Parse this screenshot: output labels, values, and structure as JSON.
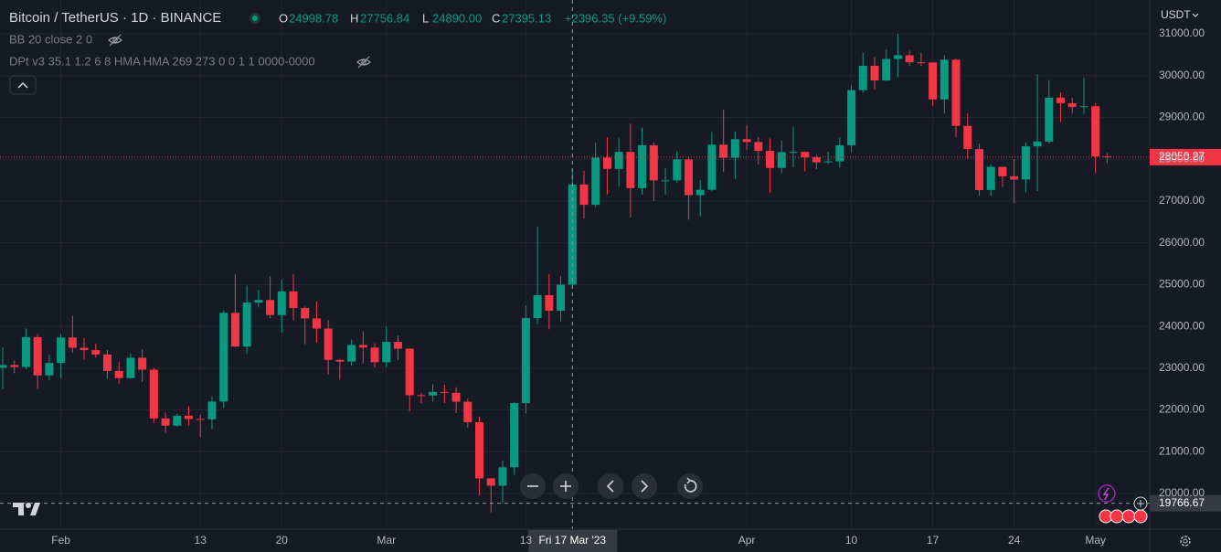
{
  "chart_data": {
    "type": "candlestick",
    "title": "Bitcoin / TetherUS · 1D · BINANCE",
    "ohlc_legend": [
      {
        "key": "O",
        "value": "24998.78"
      },
      {
        "key": "H",
        "value": "27756.84"
      },
      {
        "key": "L",
        "value": "24890.00"
      },
      {
        "key": "C",
        "value": "27395.13"
      }
    ],
    "change": "+2396.35 (+9.59%)",
    "indicators": [
      "BB 20 close 2 0",
      "DPt v3 35.1 1.2 6 8 HMA HMA 269 273 0 0 1 1 0000-0000"
    ],
    "currency": "USDT",
    "crosshair": {
      "date_label": "Fri 17 Mar '23",
      "price": 19766.67,
      "price_label": "19766.67"
    },
    "last_price": 28050.27,
    "up_color": "#089981",
    "down_color": "#f23645",
    "grid": true,
    "ylim": [
      19169,
      31809
    ],
    "yticks": [
      {
        "value": 20000,
        "label": "20000.00"
      },
      {
        "value": 21000,
        "label": "21000.00"
      },
      {
        "value": 22000,
        "label": "22000.00"
      },
      {
        "value": 23000,
        "label": "23000.00"
      },
      {
        "value": 24000,
        "label": "24000.00"
      },
      {
        "value": 25000,
        "label": "25000.00"
      },
      {
        "value": 26000,
        "label": "26000.00"
      },
      {
        "value": 27000,
        "label": "27000.00"
      },
      {
        "value": 28000,
        "label": "28000.00"
      },
      {
        "value": 29000,
        "label": "29000.00"
      },
      {
        "value": 30000,
        "label": "30000.00"
      },
      {
        "value": 31000,
        "label": "31000.00"
      }
    ],
    "categories": [
      null,
      null,
      null,
      null,
      null,
      "Feb",
      null,
      null,
      null,
      null,
      null,
      null,
      null,
      null,
      null,
      null,
      null,
      "13",
      null,
      null,
      null,
      null,
      null,
      null,
      "20",
      null,
      null,
      null,
      null,
      null,
      null,
      null,
      null,
      "Mar",
      null,
      null,
      null,
      null,
      null,
      null,
      null,
      null,
      null,
      null,
      null,
      "13",
      null,
      null,
      null,
      null,
      null,
      null,
      null,
      null,
      null,
      null,
      null,
      null,
      null,
      null,
      null,
      null,
      null,
      null,
      "Apr",
      null,
      null,
      null,
      null,
      null,
      null,
      null,
      null,
      "10",
      null,
      null,
      null,
      null,
      null,
      null,
      "17",
      null,
      null,
      null,
      null,
      null,
      null,
      "24",
      null,
      null,
      null,
      null,
      null,
      null,
      "May",
      null
    ],
    "open": [
      23009,
      23074,
      23027,
      23743,
      22826,
      23125,
      23732,
      23488,
      23431,
      23327,
      22933,
      22762,
      23249,
      22963,
      21797,
      21625,
      21862,
      21784,
      21774,
      22200,
      24324,
      23517,
      24569,
      24631,
      24271,
      24837,
      24439,
      24188,
      23947,
      23198,
      23157,
      23554,
      23492,
      23141,
      23628,
      23465,
      22354,
      22346,
      22430,
      22409,
      22197,
      21705,
      20362,
      20187,
      20628,
      22163,
      24197,
      24746,
      24375,
      24998.78,
      27395,
      26908,
      28038,
      27767,
      28175,
      27307,
      28333,
      27493,
      27494,
      27994,
      27139,
      27268,
      28348,
      28033,
      28478,
      28411,
      28199,
      27790,
      28168,
      28175,
      28044,
      27925,
      27947,
      28333,
      29653,
      30235,
      29884,
      30399,
      30485,
      30318,
      30315,
      29430,
      30380,
      28797,
      28243,
      27262,
      27816,
      27591,
      27514,
      28307,
      28422,
      29473,
      29340,
      29248,
      29268,
      28068
    ],
    "high": [
      23500,
      23189,
      23950,
      23816,
      23320,
      23812,
      24255,
      23715,
      23587,
      23433,
      23158,
      23350,
      23453,
      23011,
      21938,
      21906,
      22090,
      21885,
      22322,
      24380,
      25250,
      24974,
      24877,
      25192,
      25121,
      25250,
      24476,
      24600,
      24143,
      23218,
      23689,
      23880,
      23600,
      24000,
      23780,
      23476,
      22410,
      22613,
      22603,
      22546,
      22268,
      21834,
      20367,
      20792,
      22185,
      24500,
      26386,
      25250,
      25200,
      27756.84,
      27724,
      28390,
      28528,
      28500,
      28850,
      28758,
      28400,
      27795,
      28194,
      28040,
      27500,
      28650,
      29184,
      28660,
      28820,
      28530,
      28500,
      28444,
      28775,
      28190,
      28100,
      28178,
      28530,
      29770,
      30550,
      30440,
      30620,
      31000,
      30600,
      30549,
      30320,
      30485,
      30413,
      29094,
      28372,
      27882,
      27816,
      28000,
      28400,
      30036,
      29890,
      29600,
      29465,
      29952,
      29337,
      28150
    ],
    "low": [
      22500,
      22878,
      22974,
      22500,
      22715,
      22760,
      23363,
      23203,
      23253,
      22743,
      22628,
      22745,
      22665,
      21688,
      21451,
      21599,
      21631,
      21352,
      21532,
      22047,
      23505,
      23340,
      24450,
      24192,
      23840,
      24148,
      23574,
      23608,
      22844,
      22722,
      23059,
      23106,
      23020,
      23020,
      23195,
      21971,
      22161,
      22198,
      22162,
      21928,
      21580,
      19955,
      19549,
      19766,
      20448,
      21918,
      24050,
      23930,
      24120,
      24890,
      26578,
      26845,
      27156,
      27342,
      26601,
      27150,
      27000,
      27152,
      27427,
      26552,
      26631,
      27240,
      27694,
      27525,
      28220,
      27870,
      27200,
      27662,
      27805,
      27711,
      27766,
      27883,
      27800,
      28170,
      29590,
      29666,
      29868,
      29960,
      30236,
      30231,
      29266,
      29088,
      28520,
      28010,
      27125,
      27128,
      27337,
      26942,
      27207,
      27235,
      28375,
      28891,
      29088,
      29080,
      27666,
      27900
    ],
    "close": [
      23074,
      23027,
      23743,
      22826,
      23125,
      23732,
      23488,
      23431,
      23326,
      22933,
      22762,
      23249,
      22963,
      21797,
      21625,
      21862,
      21784,
      21774,
      22200,
      24324,
      23517,
      24569,
      24631,
      24271,
      24837,
      24439,
      24188,
      23947,
      23198,
      23157,
      23554,
      23492,
      23141,
      23628,
      23465,
      22354,
      22346,
      22430,
      22409,
      22197,
      21705,
      20362,
      20187,
      20628,
      22163,
      24197,
      24746,
      24375,
      24998,
      27395.13,
      26908,
      28038,
      27767,
      28175,
      27307,
      28333,
      27493,
      27494,
      27994,
      27139,
      27268,
      28348,
      28033,
      28478,
      28411,
      28199,
      27790,
      28168,
      28175,
      28044,
      27925,
      27947,
      28333,
      29653,
      30235,
      29884,
      30399,
      30485,
      30318,
      30315,
      29430,
      30380,
      28797,
      28243,
      27262,
      27816,
      27591,
      27514,
      28307,
      28422,
      29473,
      29340,
      29248,
      29268,
      28068,
      28050.27
    ]
  }
}
